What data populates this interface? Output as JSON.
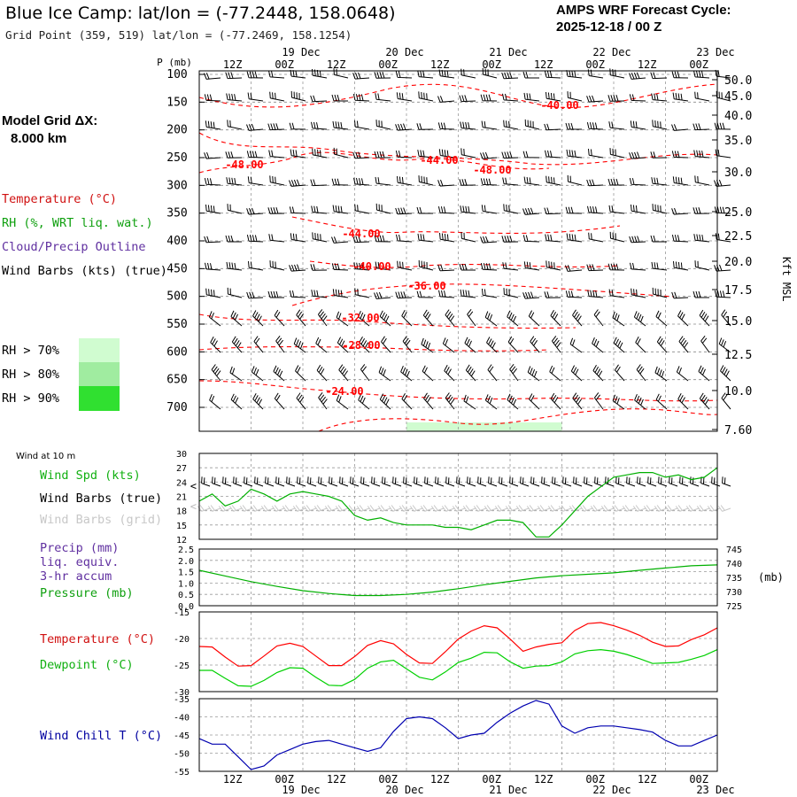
{
  "header": {
    "title": "Blue Ice Camp:  lat/lon = (-77.2448, 158.0648)",
    "grid_point": "Grid Point (359, 519) lat/lon = (-77.2469, 158.1254)",
    "cycle_line1": "AMPS WRF Forecast Cycle:",
    "cycle_line2": "2025-12-18 / 00  Z"
  },
  "sidebar": {
    "model_grid_line1": "Model Grid ΔX:",
    "model_grid_line2": "8.000 km",
    "legend_temperature": "Temperature (°C)",
    "legend_rh": "RH (%, WRT liq. wat.)",
    "legend_cloud": "Cloud/Precip Outline",
    "legend_wind": "Wind Barbs (kts) (true)",
    "rh_70": "RH > 70%",
    "rh_80": "RH > 80%",
    "rh_90": "RH > 90%",
    "rh_colors": [
      "#d0fcd0",
      "#a0eca0",
      "#30e030"
    ]
  },
  "time_axis": {
    "hour_labels": [
      "12Z",
      "00Z",
      "12Z",
      "00Z",
      "12Z",
      "00Z",
      "12Z",
      "00Z",
      "12Z",
      "00Z"
    ],
    "date_labels": [
      "19 Dec",
      "20 Dec",
      "21 Dec",
      "22 Dec",
      "23 Dec"
    ]
  },
  "profile_panel": {
    "p_axis_title": "P (mb)",
    "pressure_ticks": [
      "100",
      "150",
      "200",
      "250",
      "300",
      "350",
      "400",
      "450",
      "500",
      "550",
      "600",
      "650",
      "700"
    ],
    "height_ticks": [
      "50.0",
      "45.0",
      "40.0",
      "35.0",
      "30.0",
      "25.0",
      "22.5",
      "20.0",
      "17.5",
      "15.0",
      "12.5",
      "10.0",
      "7.60"
    ],
    "height_axis_title": "Kft MSL",
    "temperature_labels": [
      "-40.00",
      "-48.00",
      "-44.00",
      "-48.00",
      "-44.00",
      "-40.00",
      "-36.00",
      "-32.00",
      "-28.00",
      "-24.00"
    ],
    "colors": {
      "temperature": "#ff0000",
      "wind": "#000000"
    }
  },
  "wind_panel": {
    "title": "Wind at 10 m",
    "legend_speed": "Wind Spd (kts)",
    "legend_barbs_true": "Wind Barbs (true)",
    "legend_barbs_grid": "Wind Barbs (grid)",
    "y_ticks": [
      "30",
      "27",
      "24",
      "21",
      "18",
      "15",
      "12"
    ]
  },
  "precip_panel": {
    "legend_precip": "Precip (mm)",
    "legend_liq": "liq. equiv.",
    "legend_accum": "3-hr accum",
    "legend_pressure": "Pressure (mb)",
    "left_ticks": [
      "2.5",
      "2.0",
      "1.5",
      "1.0",
      "0.5",
      "0.0"
    ],
    "right_ticks": [
      "745",
      "740",
      "735",
      "730",
      "725"
    ],
    "right_unit": "(mb)"
  },
  "temp_panel": {
    "legend_temperature": "Temperature (°C)",
    "legend_dewpoint": "Dewpoint (°C)",
    "y_ticks": [
      "-15",
      "-20",
      "-25",
      "-30"
    ]
  },
  "windchill_panel": {
    "legend": "Wind Chill T (°C)",
    "y_ticks": [
      "-35",
      "-40",
      "-45",
      "-50",
      "-55"
    ]
  },
  "chart_data": [
    {
      "type": "line",
      "title": "10 m wind speed (kts)",
      "hours": [
        0,
        3,
        6,
        9,
        12,
        15,
        18,
        21,
        24,
        27,
        30,
        33,
        36,
        39,
        42,
        45,
        48,
        51,
        54,
        57,
        60,
        63,
        66,
        69,
        72,
        75,
        78,
        81,
        84,
        87,
        90,
        93,
        96,
        99,
        102,
        105,
        108,
        111,
        114,
        117,
        120
      ],
      "values": [
        20,
        21.5,
        19,
        20,
        22.5,
        21.5,
        20,
        21.5,
        22,
        21.5,
        21,
        20,
        17,
        16,
        16.5,
        15.5,
        15,
        15,
        15,
        14.5,
        14.5,
        14,
        15,
        16,
        16,
        15.5,
        12.5,
        12.5,
        15,
        18,
        21,
        23,
        25,
        25.5,
        26,
        26,
        25,
        25.5,
        24.5,
        25,
        27
      ],
      "ylim": [
        12,
        30
      ],
      "color": "#00b000"
    },
    {
      "type": "line",
      "title": "Surface pressure (mb)",
      "hours": [
        0,
        6,
        12,
        18,
        24,
        30,
        36,
        42,
        48,
        54,
        60,
        66,
        72,
        78,
        84,
        90,
        96,
        102,
        108,
        114,
        120
      ],
      "values": [
        737.5,
        735.5,
        733.5,
        731.8,
        730.3,
        729.3,
        728.6,
        728.6,
        729.0,
        729.8,
        731.0,
        732.4,
        733.6,
        734.8,
        735.6,
        736.1,
        736.6,
        737.5,
        738.3,
        739.1,
        739.4
      ],
      "ylim": [
        725,
        745
      ],
      "color": "#00b000"
    },
    {
      "type": "line",
      "title": "Temperature and Dewpoint (°C)",
      "hours": [
        0,
        3,
        6,
        9,
        12,
        15,
        18,
        21,
        24,
        27,
        30,
        33,
        36,
        39,
        42,
        45,
        48,
        51,
        54,
        57,
        60,
        63,
        66,
        69,
        72,
        75,
        78,
        81,
        84,
        87,
        90,
        93,
        96,
        99,
        102,
        105,
        108,
        111,
        114,
        117,
        120
      ],
      "series": [
        {
          "name": "Temperature",
          "color": "#ff0000",
          "values": [
            -21.5,
            -21.6,
            -23.5,
            -25.2,
            -25.1,
            -23.3,
            -21.4,
            -20.9,
            -21.5,
            -23.3,
            -25.1,
            -25.1,
            -23.4,
            -21.3,
            -20.4,
            -21.0,
            -23.0,
            -24.6,
            -24.7,
            -22.5,
            -20.1,
            -18.6,
            -17.6,
            -18.0,
            -20.1,
            -22.4,
            -21.6,
            -21.1,
            -20.8,
            -18.5,
            -17.2,
            -17.0,
            -17.6,
            -18.4,
            -19.4,
            -20.7,
            -21.5,
            -21.4,
            -20.2,
            -19.3,
            -18.0
          ]
        },
        {
          "name": "Dewpoint",
          "color": "#00d000",
          "values": [
            -26.0,
            -26.0,
            -27.5,
            -28.9,
            -29.0,
            -27.9,
            -26.4,
            -25.5,
            -25.6,
            -27.3,
            -28.8,
            -28.9,
            -27.7,
            -25.6,
            -24.4,
            -24.1,
            -25.7,
            -27.3,
            -27.8,
            -26.3,
            -24.5,
            -23.7,
            -22.6,
            -22.7,
            -24.4,
            -25.6,
            -25.2,
            -25.1,
            -24.4,
            -22.9,
            -22.3,
            -22.1,
            -22.4,
            -23.0,
            -23.8,
            -24.7,
            -24.6,
            -24.5,
            -23.9,
            -23.2,
            -22.1
          ]
        }
      ],
      "ylim": [
        -30,
        -15
      ]
    },
    {
      "type": "line",
      "title": "Wind Chill T (°C)",
      "hours": [
        0,
        3,
        6,
        9,
        12,
        15,
        18,
        21,
        24,
        27,
        30,
        33,
        36,
        39,
        42,
        45,
        48,
        51,
        54,
        57,
        60,
        63,
        66,
        69,
        72,
        75,
        78,
        81,
        84,
        87,
        90,
        93,
        96,
        99,
        102,
        105,
        108,
        111,
        114,
        117,
        120
      ],
      "values": [
        -46,
        -47.5,
        -47.5,
        -51,
        -54.5,
        -53.5,
        -50.5,
        -49,
        -47.5,
        -46.8,
        -46.5,
        -47.5,
        -48.5,
        -49.5,
        -48.5,
        -44,
        -40.5,
        -40,
        -40.5,
        -43,
        -46,
        -45,
        -44.5,
        -41.5,
        -39,
        -37,
        -35.5,
        -36.5,
        -42.5,
        -44.5,
        -43,
        -42.5,
        -42.5,
        -43,
        -43.5,
        -44.2,
        -46.5,
        -48,
        -48,
        -46.5,
        -45
      ],
      "ylim": [
        -55,
        -35
      ],
      "color": "#0000b0"
    }
  ]
}
